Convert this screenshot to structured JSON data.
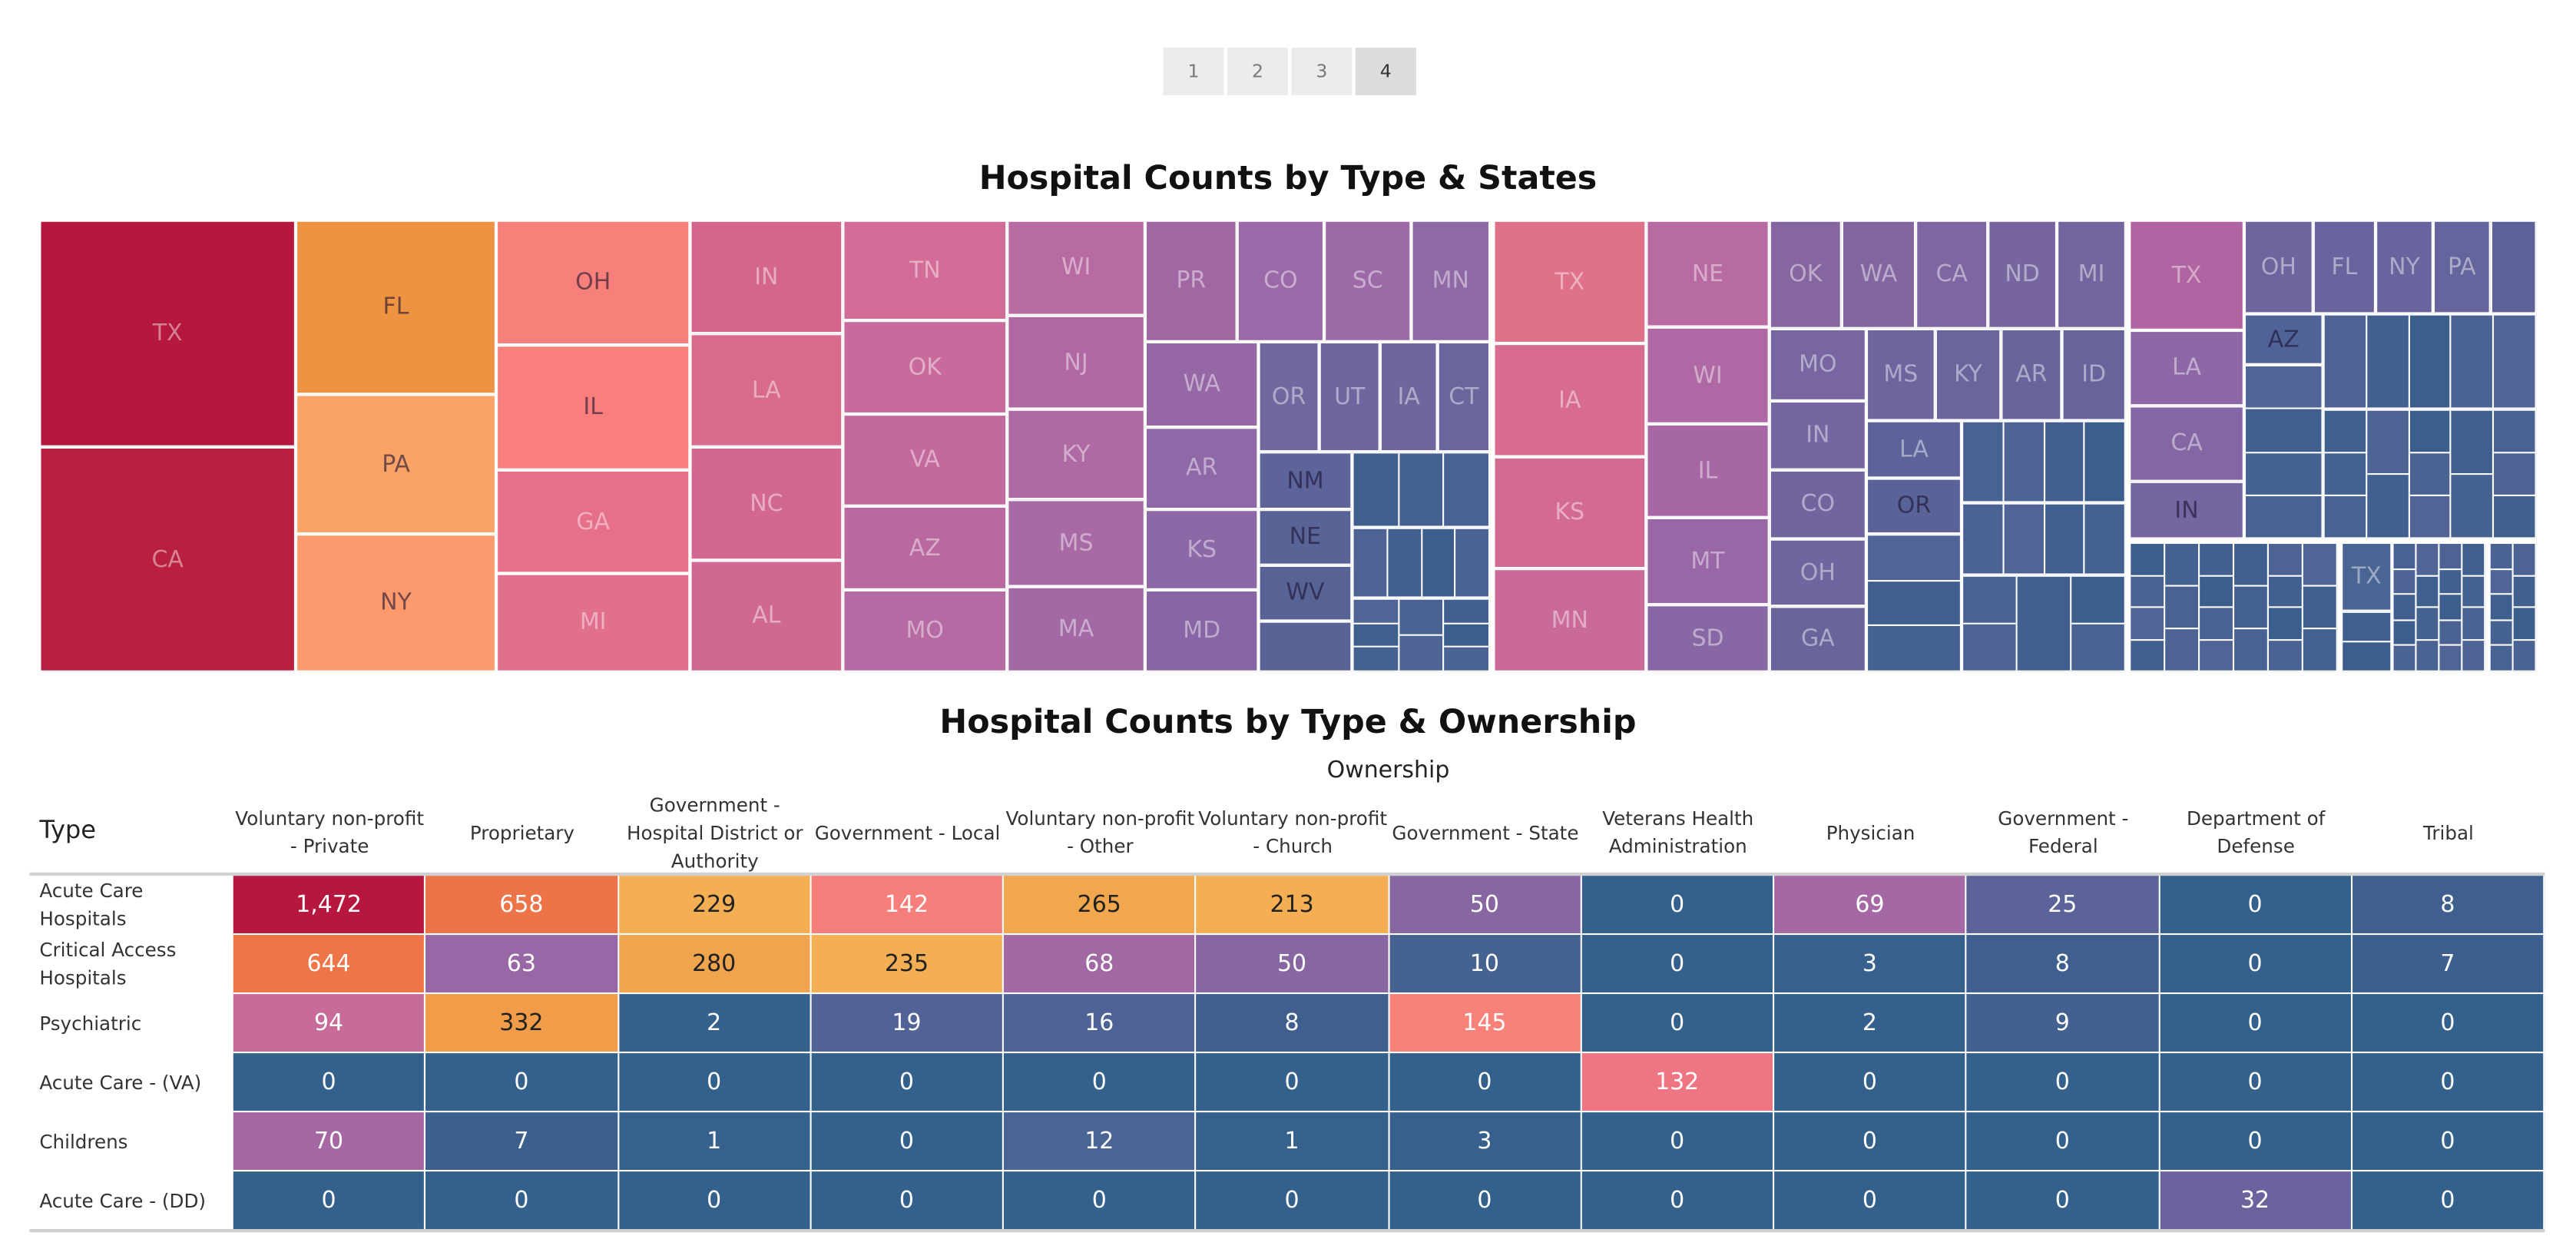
{
  "pagination": {
    "pages": [
      "1",
      "2",
      "3",
      "4"
    ],
    "active": "4"
  },
  "treemap": {
    "title": "Hospital Counts by Type & States",
    "tiles": [
      {
        "label": "TX",
        "color": "#b5173e"
      },
      {
        "label": "CA",
        "color": "#b91f3f"
      },
      {
        "label": "FL",
        "color": "#ee9342",
        "tone": "dark"
      },
      {
        "label": "PA",
        "color": "#f9a366",
        "tone": "dark"
      },
      {
        "label": "NY",
        "color": "#fc9a6e",
        "tone": "dark"
      },
      {
        "label": "OH",
        "color": "#f8807a",
        "tone": "dark"
      },
      {
        "label": "IL",
        "color": "#f87f7c",
        "tone": "dark"
      },
      {
        "label": "GA",
        "color": "#e66f8a"
      },
      {
        "label": "MI",
        "color": "#e0708d"
      },
      {
        "label": "IN",
        "color": "#d4668e"
      },
      {
        "label": "LA",
        "color": "#d86a8c"
      },
      {
        "label": "NC",
        "color": "#d26891"
      },
      {
        "label": "AL",
        "color": "#d06992"
      },
      {
        "label": "TN",
        "color": "#d46c98"
      },
      {
        "label": "OK",
        "color": "#c86b9c"
      },
      {
        "label": "VA",
        "color": "#c4699c"
      },
      {
        "label": "AZ",
        "color": "#ba68a0"
      },
      {
        "label": "MO",
        "color": "#b66aa3"
      },
      {
        "label": "WI",
        "color": "#b86ba2"
      },
      {
        "label": "NJ",
        "color": "#b068a3"
      },
      {
        "label": "KY",
        "color": "#ae6aa3"
      },
      {
        "label": "MS",
        "color": "#a86aa4"
      },
      {
        "label": "MA",
        "color": "#a269a5"
      },
      {
        "label": "PR",
        "color": "#a067a3"
      },
      {
        "label": "CO",
        "color": "#9b69a7"
      },
      {
        "label": "SC",
        "color": "#9c6aa7"
      },
      {
        "label": "MN",
        "color": "#8f68a6"
      },
      {
        "label": "WA",
        "color": "#9568a5"
      },
      {
        "label": "AR",
        "color": "#8e68a7"
      },
      {
        "label": "KS",
        "color": "#8d68a7"
      },
      {
        "label": "MD",
        "color": "#8865a4"
      },
      {
        "label": "OR",
        "color": "#72679f"
      },
      {
        "label": "UT",
        "color": "#70669f"
      },
      {
        "label": "IA",
        "color": "#70669d"
      },
      {
        "label": "CT",
        "color": "#6a659c"
      },
      {
        "label": "NM",
        "color": "#5c6499",
        "tone": "dark"
      },
      {
        "label": "NE",
        "color": "#586496",
        "tone": "dark"
      },
      {
        "label": "WV",
        "color": "#586395",
        "tone": "dark"
      },
      {
        "label": "",
        "color": "#5a6396"
      },
      {
        "label": "TX",
        "color": "#e0718b"
      },
      {
        "label": "IA",
        "color": "#d76c90"
      },
      {
        "label": "KS",
        "color": "#d26a94"
      },
      {
        "label": "MN",
        "color": "#c96a98"
      },
      {
        "label": "NE",
        "color": "#b86aa2"
      },
      {
        "label": "WI",
        "color": "#ae68a3"
      },
      {
        "label": "IL",
        "color": "#a767a5"
      },
      {
        "label": "MT",
        "color": "#9a67a6"
      },
      {
        "label": "SD",
        "color": "#8868a4"
      },
      {
        "label": "OK",
        "color": "#8566a1"
      },
      {
        "label": "WA",
        "color": "#8366a0"
      },
      {
        "label": "CA",
        "color": "#7d66a1"
      },
      {
        "label": "ND",
        "color": "#7765a0"
      },
      {
        "label": "MI",
        "color": "#75659f"
      },
      {
        "label": "MO",
        "color": "#7766a1"
      },
      {
        "label": "IN",
        "color": "#7565a0"
      },
      {
        "label": "CO",
        "color": "#72659f"
      },
      {
        "label": "OH",
        "color": "#6f659f"
      },
      {
        "label": "GA",
        "color": "#6a649c"
      },
      {
        "label": "MS",
        "color": "#6c659e"
      },
      {
        "label": "KY",
        "color": "#6a659d"
      },
      {
        "label": "AR",
        "color": "#68649c"
      },
      {
        "label": "ID",
        "color": "#66649b"
      },
      {
        "label": "LA",
        "color": "#5c6399"
      },
      {
        "label": "OR",
        "color": "#5a6397",
        "tone": "dark"
      },
      {
        "label": "TX",
        "color": "#b064a1"
      },
      {
        "label": "LA",
        "color": "#8e68a6"
      },
      {
        "label": "CA",
        "color": "#8466a4"
      },
      {
        "label": "IN",
        "color": "#7565a0",
        "tone": "dark"
      },
      {
        "label": "OH",
        "color": "#6c659e"
      },
      {
        "label": "FL",
        "color": "#6a649e"
      },
      {
        "label": "NY",
        "color": "#68649d"
      },
      {
        "label": "PA",
        "color": "#65649c"
      },
      {
        "label": "",
        "color": "#5d6399"
      },
      {
        "label": "AZ",
        "color": "#4f6396",
        "tone": "dark"
      },
      {
        "label": "TX",
        "color": "#4a6494"
      }
    ]
  },
  "table": {
    "title": "Hospital Counts by Type & Ownership",
    "column_group_label": "Ownership",
    "row_header": "Type",
    "columns": [
      "Voluntary non-profit - Private",
      "Proprietary",
      "Government - Hospital District or Authority",
      "Government - Local",
      "Voluntary non-profit - Other",
      "Voluntary non-profit - Church",
      "Government - State",
      "Veterans Health Administration",
      "Physician",
      "Government - Federal",
      "Department of Defense",
      "Tribal"
    ],
    "rows": [
      {
        "type": "Acute Care Hospitals",
        "values": [
          "1,472",
          "658",
          "229",
          "142",
          "265",
          "213",
          "50",
          "0",
          "69",
          "25",
          "0",
          "8"
        ]
      },
      {
        "type": "Critical Access Hospitals",
        "values": [
          "644",
          "63",
          "280",
          "235",
          "68",
          "50",
          "10",
          "0",
          "3",
          "8",
          "0",
          "7"
        ]
      },
      {
        "type": "Psychiatric",
        "values": [
          "94",
          "332",
          "2",
          "19",
          "16",
          "8",
          "145",
          "0",
          "2",
          "9",
          "0",
          "0"
        ]
      },
      {
        "type": "Acute Care - (VA)",
        "values": [
          "0",
          "0",
          "0",
          "0",
          "0",
          "0",
          "0",
          "132",
          "0",
          "0",
          "0",
          "0"
        ]
      },
      {
        "type": "Childrens",
        "values": [
          "70",
          "7",
          "1",
          "0",
          "12",
          "1",
          "3",
          "0",
          "0",
          "0",
          "0",
          "0"
        ]
      },
      {
        "type": "Acute Care - (DD)",
        "values": [
          "0",
          "0",
          "0",
          "0",
          "0",
          "0",
          "0",
          "0",
          "0",
          "0",
          "32",
          "0"
        ]
      }
    ],
    "color_scale": [
      [
        0,
        "#34618c"
      ],
      [
        3,
        "#37608c"
      ],
      [
        8,
        "#3f5f8e"
      ],
      [
        12,
        "#4a6494"
      ],
      [
        19,
        "#516296"
      ],
      [
        25,
        "#5b6398"
      ],
      [
        32,
        "#6a639e"
      ],
      [
        50,
        "#8766a2"
      ],
      [
        63,
        "#9a67a6"
      ],
      [
        69,
        "#a468a4"
      ],
      [
        94,
        "#c76b98"
      ],
      [
        132,
        "#ee7683"
      ],
      [
        142,
        "#f67f7c"
      ],
      [
        145,
        "#f8817a"
      ],
      [
        213,
        "#f4af55"
      ],
      [
        235,
        "#f4af55"
      ],
      [
        265,
        "#f1a74e"
      ],
      [
        280,
        "#f0a44e"
      ],
      [
        332,
        "#f09c48"
      ],
      [
        644,
        "#ed7548"
      ],
      [
        658,
        "#ed7448"
      ],
      [
        1472,
        "#b7173f"
      ]
    ]
  },
  "chart_data": [
    {
      "type": "treemap",
      "title": "Hospital Counts by Type & States"
    },
    {
      "type": "heatmap",
      "title": "Hospital Counts by Type & Ownership",
      "xlabel": "Ownership",
      "ylabel": "Type",
      "categories": [
        "Voluntary non-profit - Private",
        "Proprietary",
        "Government - Hospital District or Authority",
        "Government - Local",
        "Voluntary non-profit - Other",
        "Voluntary non-profit - Church",
        "Government - State",
        "Veterans Health Administration",
        "Physician",
        "Government - Federal",
        "Department of Defense",
        "Tribal"
      ],
      "series": [
        {
          "name": "Acute Care Hospitals",
          "values": [
            1472,
            658,
            229,
            142,
            265,
            213,
            50,
            0,
            69,
            25,
            0,
            8
          ]
        },
        {
          "name": "Critical Access Hospitals",
          "values": [
            644,
            63,
            280,
            235,
            68,
            50,
            10,
            0,
            3,
            8,
            0,
            7
          ]
        },
        {
          "name": "Psychiatric",
          "values": [
            94,
            332,
            2,
            19,
            16,
            8,
            145,
            0,
            2,
            9,
            0,
            0
          ]
        },
        {
          "name": "Acute Care - (VA)",
          "values": [
            0,
            0,
            0,
            0,
            0,
            0,
            0,
            132,
            0,
            0,
            0,
            0
          ]
        },
        {
          "name": "Childrens",
          "values": [
            70,
            7,
            1,
            0,
            12,
            1,
            3,
            0,
            0,
            0,
            0,
            0
          ]
        },
        {
          "name": "Acute Care - (DD)",
          "values": [
            0,
            0,
            0,
            0,
            0,
            0,
            0,
            0,
            0,
            0,
            32,
            0
          ]
        }
      ]
    }
  ]
}
